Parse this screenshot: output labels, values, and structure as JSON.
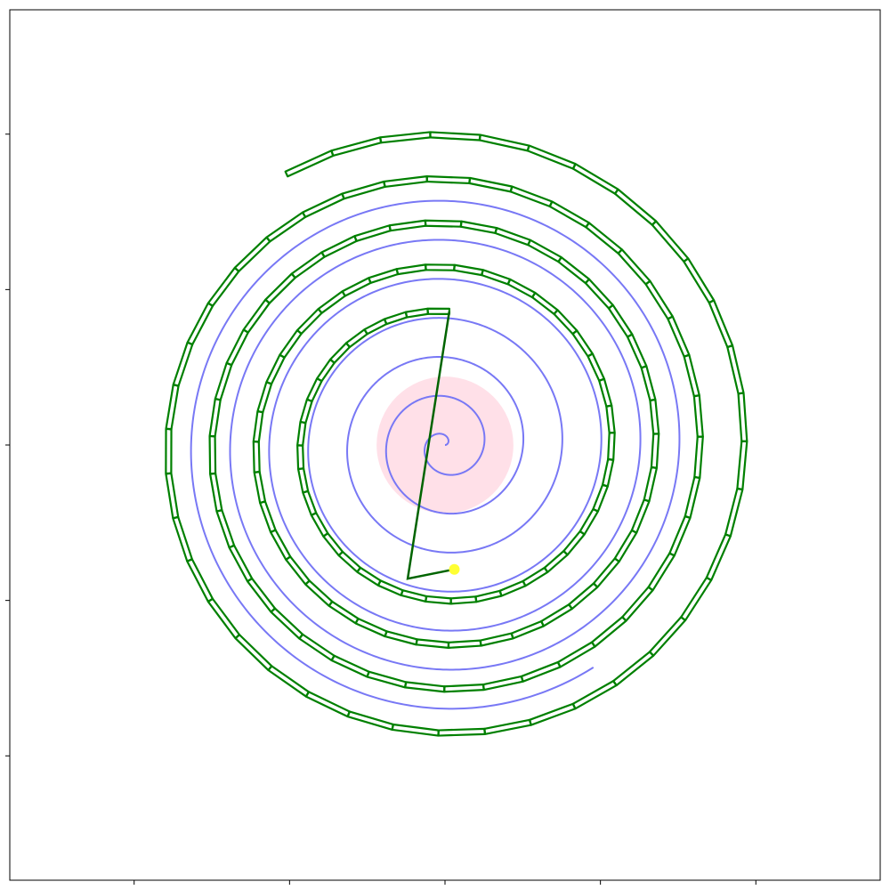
{
  "chart_data": {
    "type": "line",
    "title": "",
    "xlabel": "",
    "ylabel": "",
    "xlim": [
      -14,
      14
    ],
    "ylim": [
      -14,
      14
    ],
    "grid": false,
    "tick_labels_visible": false,
    "x_ticks": [
      -10,
      -5,
      0,
      5,
      10
    ],
    "y_ticks": [
      -10,
      -5,
      0,
      5,
      10
    ],
    "colors": {
      "spiral": "#7878f5",
      "path": "#008000",
      "region": "#ffe0e8",
      "marker": "#ffff33"
    },
    "spiral": {
      "name": "spiral",
      "equation": "r = b * theta",
      "b": 0.2,
      "theta_range": [
        0,
        43.0
      ],
      "theta_offset": 0.0
    },
    "center_region": {
      "name": "center-circle",
      "center": [
        0,
        0
      ],
      "radius": 2.2
    },
    "green_path": {
      "name": "green-path",
      "r_start": 10.1,
      "theta_start": 2.1,
      "r_end": 4.3,
      "theta_end": 4.68,
      "turns": 4.5,
      "segment_count": 160
    },
    "marker": {
      "name": "end-marker",
      "x": 0.3,
      "y": -4.0
    },
    "endpoint_tail": {
      "from": [
        0.3,
        -4.0
      ],
      "to": [
        -1.2,
        -4.3
      ]
    }
  }
}
